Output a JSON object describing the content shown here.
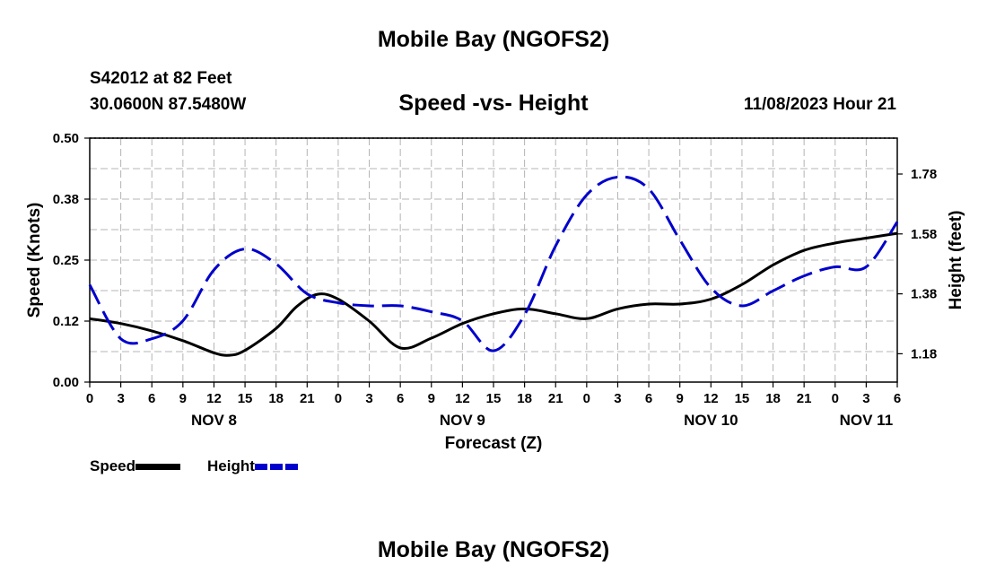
{
  "header": {
    "title": "Mobile Bay (NGOFS2)",
    "station": "S42012 at 82 Feet",
    "coords": "30.0600N  87.5480W",
    "chart_title": "Speed -vs- Height",
    "timestamp": "11/08/2023 Hour 21"
  },
  "footer": {
    "title": "Mobile Bay (NGOFS2)"
  },
  "legend": {
    "items": [
      {
        "label": "Speed",
        "color": "#000000"
      },
      {
        "label": "Height",
        "color": "#0000cc"
      }
    ]
  },
  "chart_data": {
    "type": "line",
    "title": "Speed -vs- Height",
    "xlabel": "Forecast (Z)",
    "ylabel": "Speed (Knots)",
    "y2label": "Height (feet)",
    "ylim": [
      0,
      0.5
    ],
    "y2lim": [
      1.0854,
      1.8998
    ],
    "hour_ticks": [
      "0",
      "3",
      "6",
      "9",
      "12",
      "15",
      "18",
      "21",
      "0",
      "3",
      "6",
      "9",
      "12",
      "15",
      "18",
      "21",
      "0",
      "3",
      "6",
      "9",
      "12",
      "15",
      "18",
      "21",
      "0",
      "3",
      "6"
    ],
    "day_labels": [
      {
        "label": "NOV 8",
        "hour": 12
      },
      {
        "label": "NOV 9",
        "hour": 36
      },
      {
        "label": "NOV 10",
        "hour": 60
      },
      {
        "label": "NOV 11",
        "hour": 75
      }
    ],
    "yticks": [
      "0.00",
      "0.12",
      "0.25",
      "0.38",
      "0.50"
    ],
    "y2ticks": [
      "1.18",
      "1.38",
      "1.58",
      "1.78"
    ],
    "grid": true,
    "x_hours": [
      0,
      3,
      6,
      9,
      12,
      13.5,
      15,
      18,
      20,
      22,
      24,
      27,
      30,
      33,
      36,
      39,
      42,
      45,
      48,
      51,
      54,
      57,
      60,
      63,
      66,
      69,
      72,
      75,
      78
    ],
    "series": [
      {
        "name": "Speed",
        "axis": "left",
        "color": "#000000",
        "style": "solid",
        "values": [
          0.13,
          0.12,
          0.105,
          0.085,
          0.06,
          0.055,
          0.065,
          0.11,
          0.155,
          0.18,
          0.17,
          0.125,
          0.07,
          0.09,
          0.12,
          0.14,
          0.15,
          0.14,
          0.13,
          0.15,
          0.16,
          0.16,
          0.17,
          0.2,
          0.24,
          0.27,
          0.285,
          0.295,
          0.305
        ]
      },
      {
        "name": "Height",
        "axis": "right",
        "color": "#0000cc",
        "style": "dashed",
        "x_hours": [
          0,
          3,
          6,
          9,
          12,
          15,
          18,
          21,
          24,
          27,
          30,
          33,
          36,
          39,
          42,
          45,
          48,
          51,
          54,
          57,
          60,
          63,
          66,
          69,
          72,
          75,
          78
        ],
        "values": [
          1.41,
          1.23,
          1.23,
          1.29,
          1.46,
          1.53,
          1.48,
          1.38,
          1.35,
          1.34,
          1.34,
          1.32,
          1.29,
          1.19,
          1.31,
          1.54,
          1.71,
          1.77,
          1.73,
          1.56,
          1.4,
          1.34,
          1.39,
          1.44,
          1.47,
          1.47,
          1.62
        ]
      }
    ]
  }
}
